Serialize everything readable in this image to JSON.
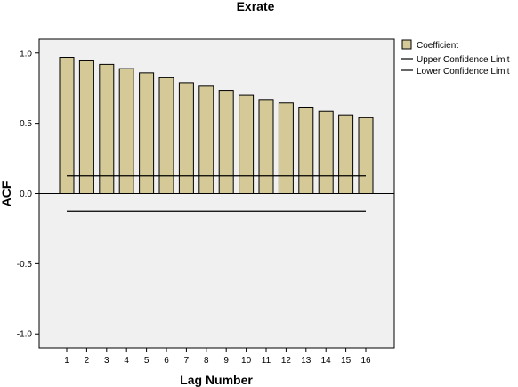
{
  "chart_data": {
    "type": "bar",
    "title": "Exrate",
    "xlabel": "Lag Number",
    "ylabel": "ACF",
    "ylim": [
      -1.1,
      1.1
    ],
    "yticks": [
      1.0,
      0.5,
      0.0,
      -0.5,
      -1.0
    ],
    "ytick_labels": [
      "1.0",
      "0.5",
      "0.0",
      "-0.5",
      "-1.0"
    ],
    "categories": [
      "1",
      "2",
      "3",
      "4",
      "5",
      "6",
      "7",
      "8",
      "9",
      "10",
      "11",
      "12",
      "13",
      "14",
      "15",
      "16"
    ],
    "series": [
      {
        "name": "Coefficient",
        "values": [
          0.97,
          0.945,
          0.92,
          0.89,
          0.86,
          0.825,
          0.79,
          0.765,
          0.735,
          0.7,
          0.67,
          0.645,
          0.615,
          0.585,
          0.56,
          0.54
        ]
      }
    ],
    "confidence_limits": {
      "upper": {
        "name": "Upper Confidence Limit",
        "values": [
          0.125,
          0.125
        ]
      },
      "lower": {
        "name": "Lower Confidence Limit",
        "values": [
          -0.125,
          -0.125
        ]
      }
    },
    "grid": false,
    "legend_position": "top-right",
    "colors": {
      "bar_fill": "#d4c997",
      "bar_stroke": "#000000",
      "plot_bg": "#f0f0f0",
      "line": "#000000"
    }
  }
}
